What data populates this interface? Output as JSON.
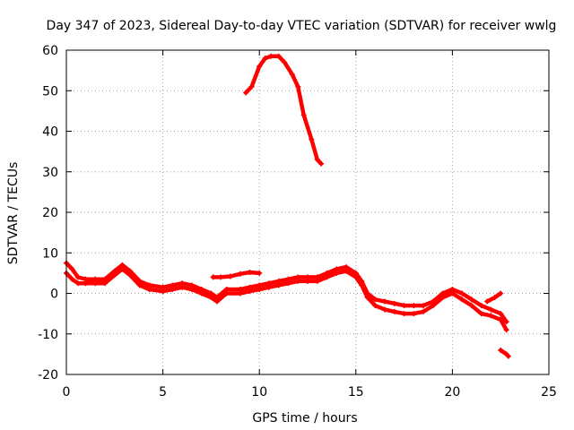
{
  "chart_data": {
    "type": "line",
    "title": "Day 347 of 2023, Sidereal Day-to-day VTEC variation (SDTVAR) for receiver wwlg",
    "xlabel": "GPS time / hours",
    "ylabel": "SDTVAR / TECUs",
    "xlim": [
      0,
      25
    ],
    "ylim": [
      -20,
      60
    ],
    "xticks": [
      0,
      5,
      10,
      15,
      20,
      25
    ],
    "yticks": [
      -20,
      -10,
      0,
      10,
      20,
      30,
      40,
      50,
      60
    ],
    "grid": true,
    "color": "#ff0000",
    "series": [
      {
        "name": "main-band-upper",
        "points": [
          [
            0,
            7.5
          ],
          [
            0.3,
            6
          ],
          [
            0.6,
            4
          ],
          [
            1,
            3.5
          ],
          [
            1.5,
            3.5
          ],
          [
            2,
            3.5
          ],
          [
            2.5,
            5.5
          ],
          [
            2.9,
            7
          ],
          [
            3.3,
            5.5
          ],
          [
            3.8,
            3
          ],
          [
            4.3,
            2
          ],
          [
            5,
            1.5
          ],
          [
            5.5,
            2
          ],
          [
            6,
            2.5
          ],
          [
            6.5,
            2
          ],
          [
            7,
            1
          ],
          [
            7.5,
            0
          ],
          [
            7.8,
            -1
          ],
          [
            8.3,
            1
          ],
          [
            9,
            1
          ],
          [
            9.5,
            1.5
          ],
          [
            10,
            2
          ],
          [
            10.5,
            2.5
          ],
          [
            11,
            3
          ],
          [
            11.5,
            3.5
          ],
          [
            12,
            4
          ],
          [
            12.5,
            4
          ],
          [
            13,
            4
          ],
          [
            13.5,
            5
          ],
          [
            14,
            6
          ],
          [
            14.5,
            6.5
          ],
          [
            15,
            5
          ],
          [
            15.3,
            3
          ],
          [
            15.6,
            0
          ],
          [
            16,
            -1.5
          ],
          [
            16.5,
            -2
          ],
          [
            17,
            -2.5
          ],
          [
            17.5,
            -3
          ],
          [
            18,
            -3
          ],
          [
            18.5,
            -3
          ],
          [
            19,
            -2
          ],
          [
            19.5,
            0
          ],
          [
            20,
            1
          ],
          [
            20.5,
            0
          ],
          [
            21,
            -1.5
          ],
          [
            21.5,
            -3
          ],
          [
            22,
            -4
          ],
          [
            22.5,
            -5
          ],
          [
            22.8,
            -7
          ]
        ]
      },
      {
        "name": "main-band-lower",
        "points": [
          [
            0,
            5
          ],
          [
            0.3,
            3.5
          ],
          [
            0.6,
            2.5
          ],
          [
            1,
            2.5
          ],
          [
            1.5,
            2.5
          ],
          [
            2,
            2.5
          ],
          [
            2.5,
            4.5
          ],
          [
            2.9,
            6
          ],
          [
            3.3,
            4.5
          ],
          [
            3.8,
            2
          ],
          [
            4.3,
            1
          ],
          [
            5,
            0.5
          ],
          [
            5.5,
            1
          ],
          [
            6,
            1.5
          ],
          [
            6.5,
            1
          ],
          [
            7,
            0
          ],
          [
            7.5,
            -1
          ],
          [
            7.8,
            -2
          ],
          [
            8.3,
            0
          ],
          [
            9,
            0
          ],
          [
            9.5,
            0.5
          ],
          [
            10,
            1
          ],
          [
            10.5,
            1.5
          ],
          [
            11,
            2
          ],
          [
            11.5,
            2.5
          ],
          [
            12,
            3
          ],
          [
            12.5,
            3
          ],
          [
            13,
            3
          ],
          [
            13.5,
            4
          ],
          [
            14,
            5
          ],
          [
            14.5,
            5.5
          ],
          [
            15,
            4
          ],
          [
            15.3,
            2
          ],
          [
            15.6,
            -1
          ],
          [
            16,
            -3
          ],
          [
            16.5,
            -4
          ],
          [
            17,
            -4.5
          ],
          [
            17.5,
            -5
          ],
          [
            18,
            -5
          ],
          [
            18.5,
            -4.5
          ],
          [
            19,
            -3
          ],
          [
            19.5,
            -1
          ],
          [
            20,
            0
          ],
          [
            20.5,
            -1.5
          ],
          [
            21,
            -3
          ],
          [
            21.5,
            -5
          ],
          [
            22,
            -5.5
          ],
          [
            22.5,
            -6.5
          ],
          [
            22.8,
            -9
          ]
        ]
      },
      {
        "name": "short-segment",
        "points": [
          [
            7.6,
            4
          ],
          [
            8,
            4
          ],
          [
            8.5,
            4.2
          ],
          [
            9,
            4.8
          ],
          [
            9.5,
            5.2
          ],
          [
            10,
            5
          ]
        ]
      },
      {
        "name": "tail-segment",
        "points": [
          [
            21.8,
            -2
          ],
          [
            22.2,
            -1
          ],
          [
            22.5,
            0
          ]
        ]
      },
      {
        "name": "end-segment",
        "points": [
          [
            22.5,
            -14
          ],
          [
            22.8,
            -15
          ],
          [
            22.9,
            -15.5
          ]
        ]
      },
      {
        "name": "high-arc",
        "points": [
          [
            9.3,
            49.5
          ],
          [
            9.6,
            51
          ],
          [
            10,
            56
          ],
          [
            10.3,
            58
          ],
          [
            10.6,
            58.5
          ],
          [
            11,
            58.5
          ],
          [
            11.3,
            57
          ],
          [
            11.7,
            54
          ],
          [
            12,
            51
          ],
          [
            12.3,
            44
          ],
          [
            12.7,
            38
          ],
          [
            13,
            33
          ],
          [
            13.2,
            32
          ]
        ]
      }
    ]
  }
}
